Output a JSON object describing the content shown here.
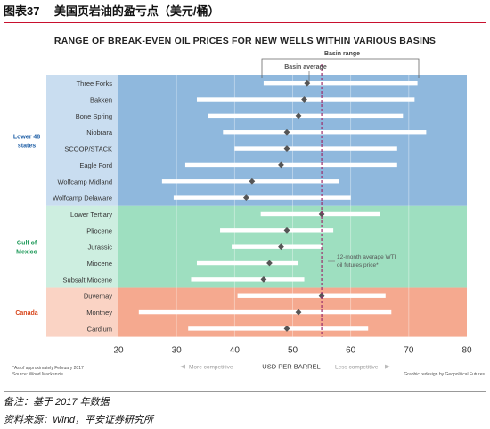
{
  "figure": {
    "number": "图表37",
    "title": "美国页岩油的盈亏点（美元/桶）"
  },
  "footer": {
    "note": "备注：基于 2017 年数据",
    "source": "资料来源：Wind，平安证券研究所"
  },
  "chart_data": {
    "type": "range",
    "title": "RANGE OF BREAK-EVEN OIL PRICES FOR NEW WELLS WITHIN VARIOUS BASINS",
    "xlabel": "USD PER BARREL",
    "xlim": [
      20,
      80
    ],
    "xticks": [
      20,
      30,
      40,
      50,
      60,
      70,
      80
    ],
    "grid": true,
    "legend": {
      "range_label": "Basin range",
      "average_label": "Basin average",
      "placement": "top"
    },
    "reference_line": {
      "value": 55,
      "label_line1": "12-month average WTI",
      "label_line2": "oil futures price*"
    },
    "axis_annotations": {
      "left": "More competitive",
      "right": "Less competitive"
    },
    "notes": {
      "asof": "*As of approximately February 2017",
      "source": "Source: Wood Mackenzie",
      "credit": "Graphic redesign by Geopolitical Futures"
    },
    "groups": [
      {
        "name": "Lower 48 states",
        "name_lines": [
          "Lower 48",
          "states"
        ],
        "color": "#8fb8dd",
        "label_color": "#c9ddf0",
        "name_color": "#1f5fa6",
        "basins": [
          {
            "name": "Three Forks",
            "low": 45,
            "high": 71.5,
            "avg": 52.5
          },
          {
            "name": "Bakken",
            "low": 33.5,
            "high": 71,
            "avg": 52
          },
          {
            "name": "Bone Spring",
            "low": 35.5,
            "high": 69,
            "avg": 51
          },
          {
            "name": "Niobrara",
            "low": 38,
            "high": 73,
            "avg": 49
          },
          {
            "name": "SCOOP/STACK",
            "low": 40,
            "high": 68,
            "avg": 49
          },
          {
            "name": "Eagle Ford",
            "low": 31.5,
            "high": 68,
            "avg": 48
          },
          {
            "name": "Wolfcamp Midland",
            "low": 27.5,
            "high": 58,
            "avg": 43
          },
          {
            "name": "Wolfcamp Delaware",
            "low": 29.5,
            "high": 60,
            "avg": 42
          }
        ]
      },
      {
        "name": "Gulf of Mexico",
        "name_lines": [
          "Gulf of",
          "Mexico"
        ],
        "color": "#9edfc0",
        "label_color": "#cdeee0",
        "name_color": "#1f9a5a",
        "basins": [
          {
            "name": "Lower Tertiary",
            "low": 44.5,
            "high": 65,
            "avg": 55
          },
          {
            "name": "Pliocene",
            "low": 37.5,
            "high": 57,
            "avg": 49
          },
          {
            "name": "Jurassic",
            "low": 39.5,
            "high": 55,
            "avg": 48
          },
          {
            "name": "Miocene",
            "low": 33.5,
            "high": 51,
            "avg": 46
          },
          {
            "name": "Subsalt Miocene",
            "low": 32.5,
            "high": 52,
            "avg": 45
          }
        ]
      },
      {
        "name": "Canada",
        "name_lines": [
          "Canada"
        ],
        "color": "#f5a98f",
        "label_color": "#fad3c4",
        "name_color": "#d8481e",
        "basins": [
          {
            "name": "Duvernay",
            "low": 40.5,
            "high": 66,
            "avg": 55
          },
          {
            "name": "Montney",
            "low": 23.5,
            "high": 67,
            "avg": 51
          },
          {
            "name": "Cardium",
            "low": 32,
            "high": 63,
            "avg": 49
          }
        ]
      }
    ]
  }
}
